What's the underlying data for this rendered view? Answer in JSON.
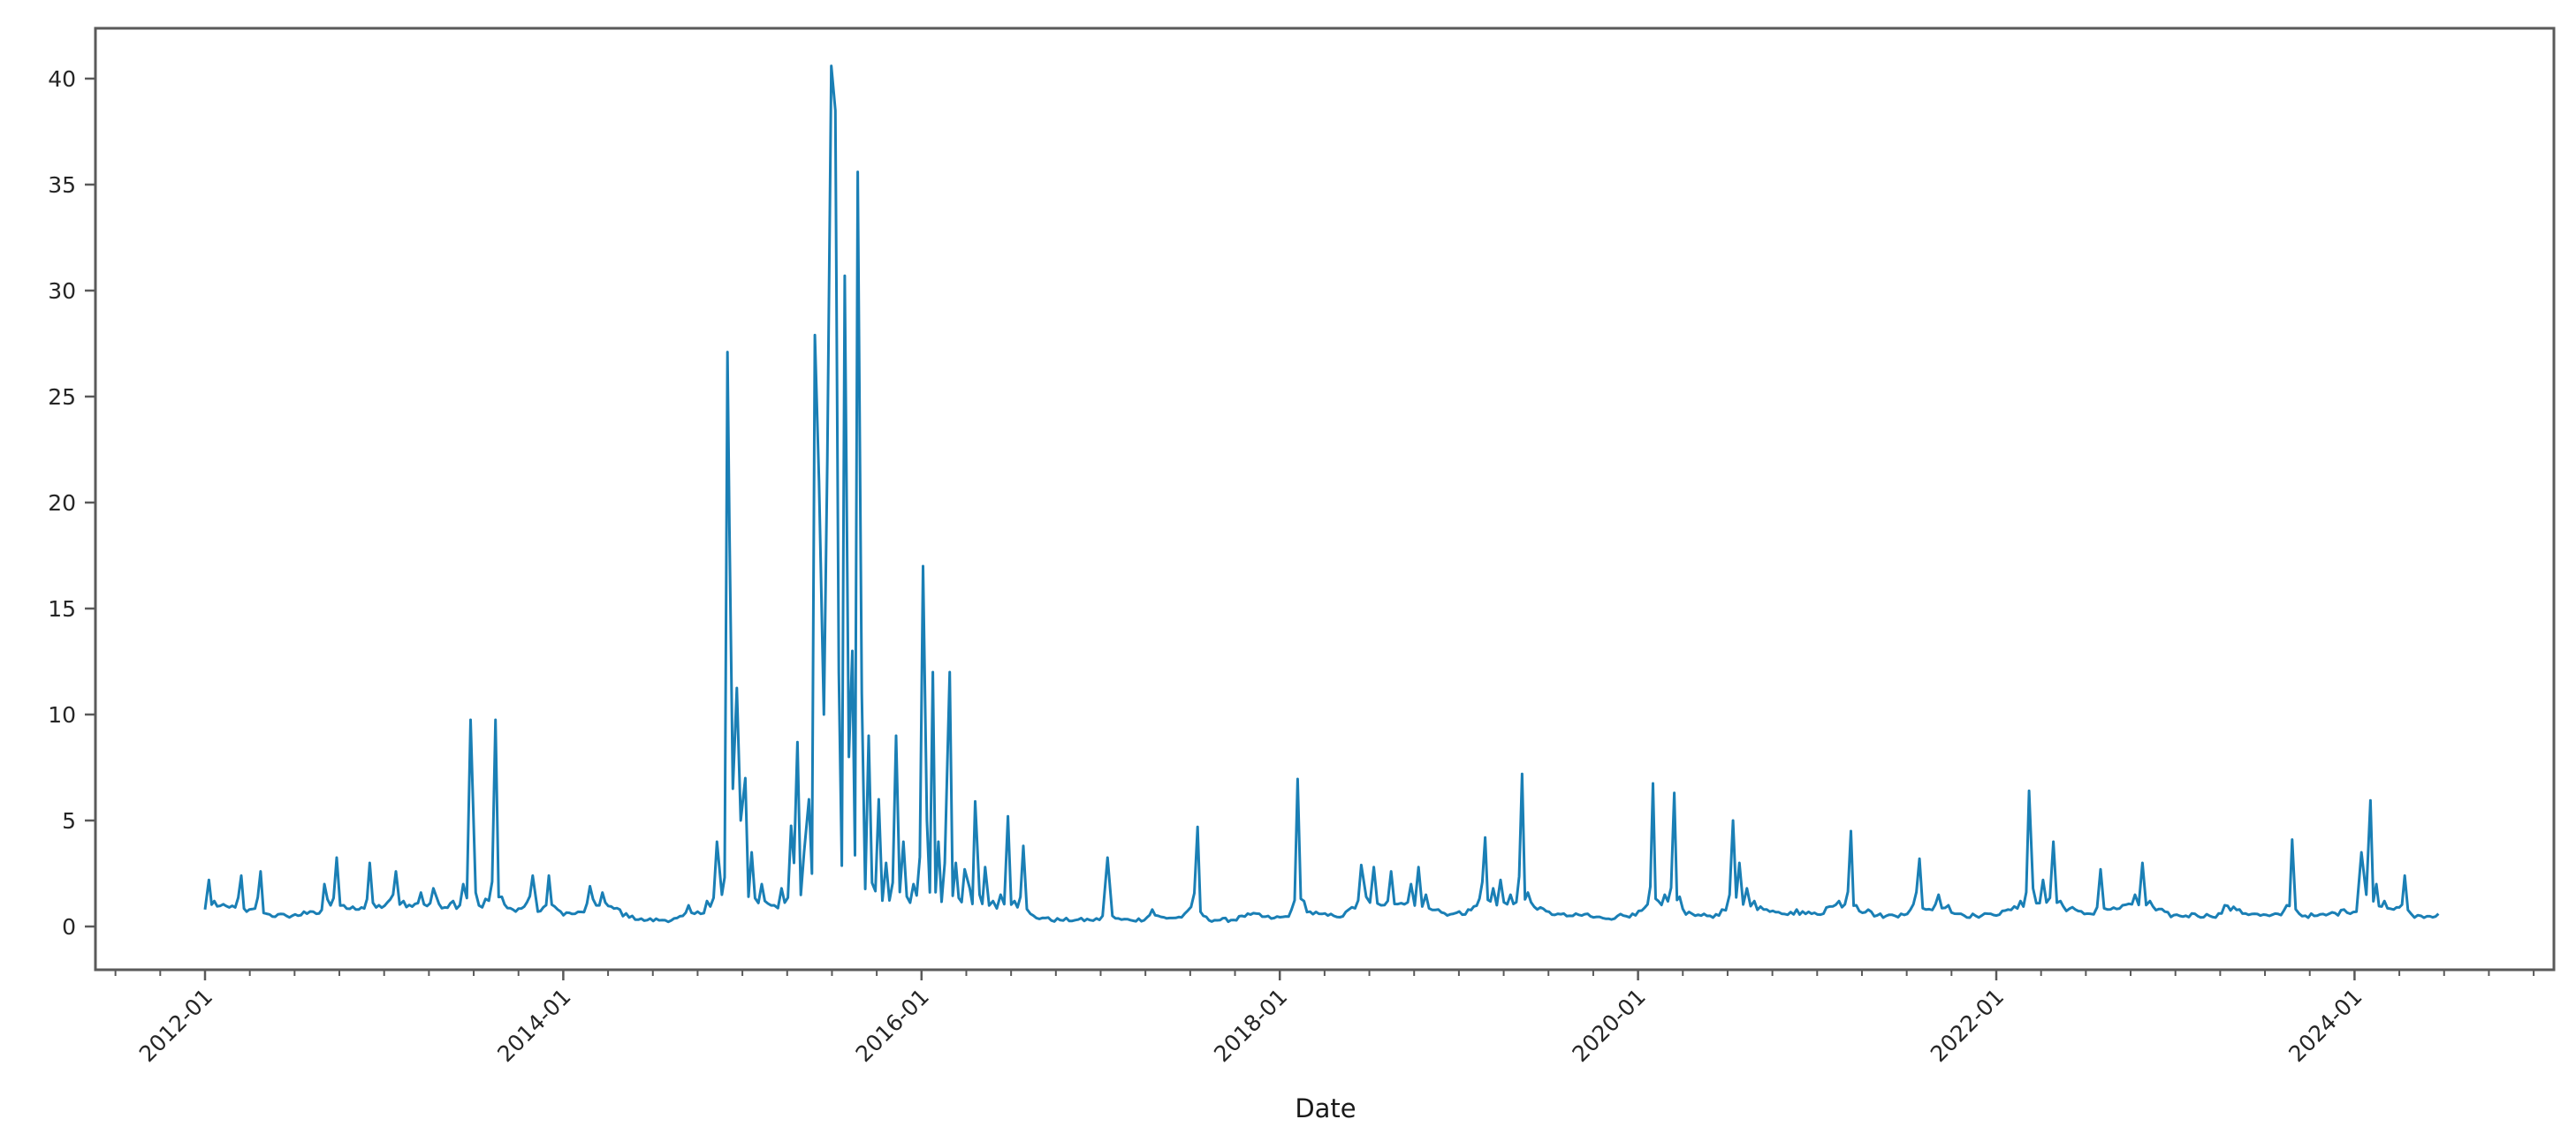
{
  "chart_data": {
    "type": "line",
    "title": "",
    "xlabel": "Date",
    "ylabel": "",
    "ylim": [
      -2,
      42
    ],
    "xlim": [
      "2011-05",
      "2025-02"
    ],
    "grid": false,
    "legend": null,
    "line_color": "#1a7fb5",
    "yticks": [
      0,
      5,
      10,
      15,
      20,
      25,
      30,
      35,
      40
    ],
    "ytick_labels": [
      "0",
      "5",
      "10",
      "15",
      "20",
      "25",
      "30",
      "35",
      "40"
    ],
    "xticks": [
      "2012-01",
      "2014-01",
      "2016-01",
      "2018-01",
      "2020-01",
      "2022-01",
      "2024-01"
    ],
    "xtick_labels": [
      "2012-01",
      "2014-01",
      "2016-01",
      "2018-01",
      "2020-01",
      "2022-01",
      "2024-01"
    ],
    "minor_xticks": "quarterly",
    "series": [
      {
        "name": "value",
        "x": [
          "2012-01-01",
          "2012-01-09",
          "2012-01-20",
          "2012-02-20",
          "2012-03-14",
          "2012-03-25",
          "2012-04-23",
          "2012-05-05",
          "2012-06-15",
          "2012-07-20",
          "2012-08-15",
          "2012-09-01",
          "2012-09-26",
          "2012-10-10",
          "2012-11-10",
          "2012-12-02",
          "2012-12-15",
          "2013-01-25",
          "2013-02-10",
          "2013-03-15",
          "2013-04-10",
          "2013-05-20",
          "2013-06-10",
          "2013-06-25",
          "2013-07-05",
          "2013-07-25",
          "2013-08-15",
          "2013-08-28",
          "2013-09-20",
          "2013-10-30",
          "2013-11-10",
          "2013-12-02",
          "2013-12-20",
          "2014-01-25",
          "2014-02-25",
          "2014-03-20",
          "2014-04-25",
          "2014-05-20",
          "2014-06-20",
          "2014-07-20",
          "2014-08-20",
          "2014-09-13",
          "2014-09-25",
          "2014-10-20",
          "2014-11-10",
          "2014-11-20",
          "2014-12-01",
          "2014-12-05",
          "2014-12-12",
          "2014-12-20",
          "2014-12-28",
          "2015-01-07",
          "2015-01-20",
          "2015-02-10",
          "2015-03-05",
          "2015-03-20",
          "2015-04-09",
          "2015-04-15",
          "2015-04-22",
          "2015-05-05",
          "2015-05-15",
          "2015-05-27",
          "2015-06-05",
          "2015-06-15",
          "2015-06-22",
          "2015-06-30",
          "2015-07-08",
          "2015-07-15",
          "2015-07-27",
          "2015-08-05",
          "2015-08-12",
          "2015-08-23",
          "2015-09-01",
          "2015-09-15",
          "2015-10-05",
          "2015-10-20",
          "2015-11-10",
          "2015-11-25",
          "2015-12-15",
          "2016-01-04",
          "2016-01-12",
          "2016-01-24",
          "2016-02-05",
          "2016-02-18",
          "2016-02-28",
          "2016-03-10",
          "2016-03-28",
          "2016-04-08",
          "2016-04-19",
          "2016-04-28",
          "2016-05-09",
          "2016-05-25",
          "2016-06-10",
          "2016-06-25",
          "2016-07-08",
          "2016-07-26",
          "2016-08-10",
          "2016-09-10",
          "2016-10-10",
          "2016-11-10",
          "2016-12-10",
          "2017-01-05",
          "2017-01-15",
          "2017-01-25",
          "2017-03-01",
          "2017-04-15",
          "2017-05-20",
          "2017-06-20",
          "2017-07-16",
          "2017-07-28",
          "2017-09-01",
          "2017-10-15",
          "2017-11-20",
          "2017-12-20",
          "2018-01-25",
          "2018-02-07",
          "2018-02-20",
          "2018-03-20",
          "2018-04-20",
          "2018-05-20",
          "2018-06-15",
          "2018-06-25",
          "2018-07-10",
          "2018-07-25",
          "2018-08-15",
          "2018-09-05",
          "2018-09-25",
          "2018-10-10",
          "2018-10-25",
          "2018-11-20",
          "2018-12-20",
          "2019-01-20",
          "2019-02-24",
          "2019-03-10",
          "2019-03-25",
          "2019-04-15",
          "2019-05-08",
          "2019-05-20",
          "2019-06-15",
          "2019-07-20",
          "2019-08-20",
          "2019-09-20",
          "2019-10-20",
          "2019-11-20",
          "2019-12-20",
          "2020-01-15",
          "2020-02-01",
          "2020-02-12",
          "2020-02-25",
          "2020-03-14",
          "2020-03-25",
          "2020-04-20",
          "2020-05-20",
          "2020-06-20",
          "2020-07-05",
          "2020-07-12",
          "2020-07-25",
          "2020-08-10",
          "2020-08-25",
          "2020-09-20",
          "2020-10-20",
          "2020-11-20",
          "2020-12-20",
          "2021-01-20",
          "2021-02-15",
          "2021-03-09",
          "2021-03-20",
          "2021-04-20",
          "2021-05-20",
          "2021-06-20",
          "2021-07-27",
          "2021-08-10",
          "2021-09-05",
          "2021-09-25",
          "2021-10-20",
          "2021-11-20",
          "2021-12-20",
          "2022-01-25",
          "2022-02-20",
          "2022-03-07",
          "2022-03-15",
          "2022-04-05",
          "2022-04-26",
          "2022-05-10",
          "2022-06-10",
          "2022-07-10",
          "2022-07-31",
          "2022-08-15",
          "2022-09-15",
          "2022-10-10",
          "2022-10-25",
          "2022-11-10",
          "2022-12-10",
          "2023-01-10",
          "2023-02-10",
          "2023-03-10",
          "2023-04-10",
          "2023-05-10",
          "2023-06-10",
          "2023-07-10",
          "2023-08-15",
          "2023-08-26",
          "2023-09-10",
          "2023-10-10",
          "2023-11-10",
          "2023-12-10",
          "2024-01-05",
          "2024-01-15",
          "2024-01-25",
          "2024-02-03",
          "2024-02-15",
          "2024-03-01",
          "2024-03-20",
          "2024-04-12",
          "2024-04-25",
          "2024-05-15",
          "2024-06-20"
        ],
        "values": [
          0.8,
          2.2,
          1.2,
          0.9,
          2.4,
          0.7,
          2.6,
          0.6,
          0.5,
          0.7,
          0.6,
          2.0,
          3.25,
          1.0,
          0.8,
          3.0,
          0.9,
          2.6,
          1.2,
          1.6,
          1.8,
          1.2,
          2.0,
          9.75,
          1.6,
          1.3,
          9.75,
          1.4,
          0.8,
          2.4,
          0.7,
          2.4,
          0.8,
          0.6,
          1.9,
          1.6,
          0.8,
          0.5,
          0.3,
          0.3,
          0.4,
          1.0,
          0.6,
          1.2,
          4.0,
          1.5,
          27.1,
          18.9,
          6.5,
          11.25,
          5.0,
          7.0,
          3.5,
          2.0,
          1.0,
          1.8,
          4.75,
          3.0,
          8.7,
          3.5,
          6.0,
          27.9,
          21.0,
          10.0,
          22.0,
          40.6,
          38.5,
          12.0,
          30.7,
          8.0,
          13.0,
          35.6,
          11.0,
          9.0,
          6.0,
          3.0,
          9.0,
          4.0,
          2.0,
          17.0,
          5.0,
          12.0,
          4.0,
          3.0,
          12.0,
          3.0,
          2.7,
          1.8,
          5.9,
          1.5,
          2.8,
          1.2,
          1.5,
          5.2,
          1.2,
          3.8,
          0.6,
          0.4,
          0.3,
          0.3,
          0.3,
          0.5,
          3.25,
          0.5,
          0.3,
          0.8,
          0.4,
          0.6,
          4.7,
          0.5,
          0.3,
          0.5,
          0.6,
          0.4,
          0.8,
          6.96,
          1.2,
          0.6,
          0.5,
          0.8,
          2.9,
          1.4,
          2.8,
          1.0,
          2.6,
          1.1,
          2.0,
          2.8,
          1.5,
          0.8,
          0.6,
          0.8,
          4.2,
          1.8,
          2.2,
          1.5,
          7.2,
          1.6,
          0.9,
          0.6,
          0.5,
          0.6,
          0.4,
          0.5,
          0.6,
          0.9,
          6.75,
          1.2,
          1.5,
          6.3,
          1.4,
          0.6,
          0.5,
          0.8,
          1.5,
          5.0,
          3.0,
          1.8,
          1.2,
          0.8,
          0.6,
          0.8,
          0.6,
          0.9,
          1.2,
          4.5,
          1.0,
          0.7,
          0.5,
          0.6,
          3.2,
          0.8,
          1.5,
          1.0,
          0.6,
          0.5,
          0.6,
          0.8,
          1.2,
          6.4,
          1.8,
          2.2,
          4.0,
          1.2,
          0.8,
          0.6,
          2.7,
          0.8,
          1.0,
          1.5,
          3.0,
          1.2,
          0.7,
          0.5,
          0.6,
          0.5,
          1.0,
          0.8,
          0.6,
          0.5,
          1.0,
          4.1,
          0.6,
          0.5,
          0.6,
          0.8,
          0.7,
          3.5,
          1.5,
          5.95,
          2.0,
          1.2,
          0.8,
          2.4,
          0.6,
          0.5,
          0.6
        ]
      }
    ]
  },
  "axes": {
    "xlabel": "Date"
  }
}
